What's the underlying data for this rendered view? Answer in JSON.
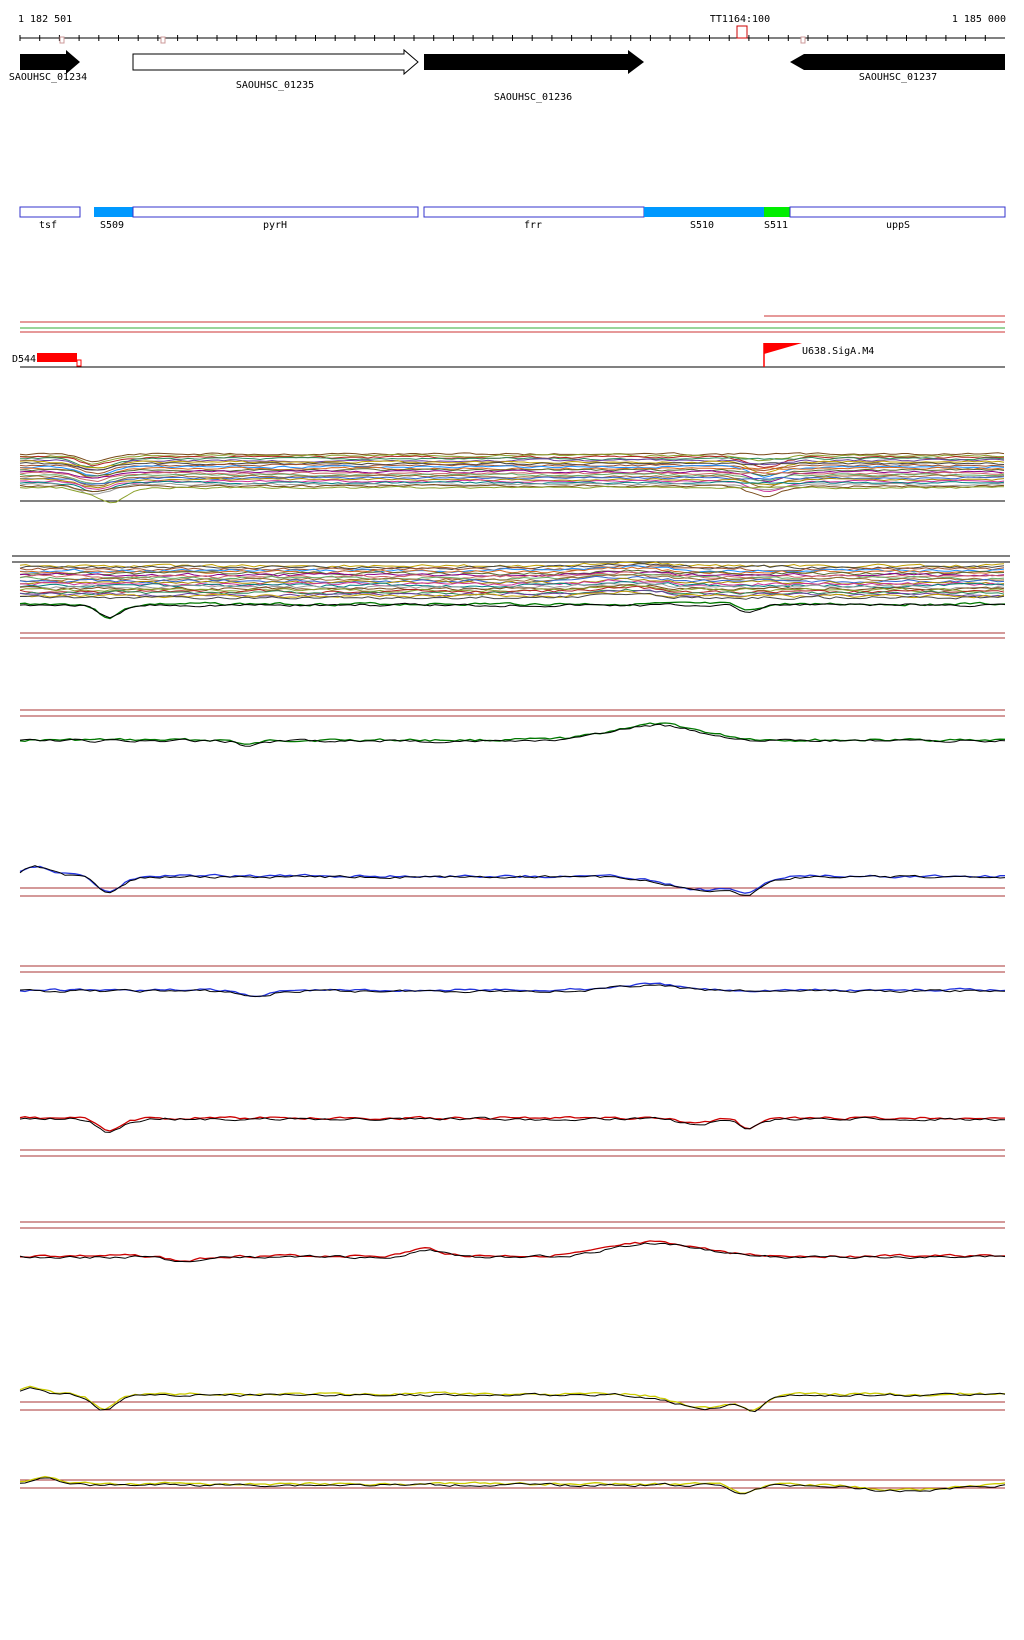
{
  "coordinates": {
    "start": "1 182 501",
    "end": "1 185 000"
  },
  "terminator": {
    "label": "TT1164:100"
  },
  "genes": [
    {
      "id": "SAOUHSC_01234",
      "strand": "+",
      "style": "filled"
    },
    {
      "id": "SAOUHSC_01235",
      "strand": "+",
      "style": "open"
    },
    {
      "id": "SAOUHSC_01236",
      "strand": "+",
      "style": "filled"
    },
    {
      "id": "SAOUHSC_01237",
      "strand": "-",
      "style": "filled"
    }
  ],
  "annotation_segments": [
    {
      "label": "tsf",
      "kind": "gene"
    },
    {
      "label": "S509",
      "kind": "segment"
    },
    {
      "label": "pyrH",
      "kind": "gene"
    },
    {
      "label": "frr",
      "kind": "gene"
    },
    {
      "label": "S510",
      "kind": "segment"
    },
    {
      "label": "S511",
      "kind": "segment"
    },
    {
      "label": "uppS",
      "kind": "gene"
    }
  ],
  "features": [
    {
      "label": "D544"
    },
    {
      "label": "U638.SigA.M4"
    }
  ],
  "colors": {
    "gene_fill": "#000000",
    "segment_blue": "#0099ff",
    "segment_green": "#00ee00",
    "segment_outline": "#3333cc",
    "feature_red": "#ff0000",
    "threshold_line": "#aa3333",
    "track_green": "#007700",
    "track_blue": "#2233dd",
    "track_red": "#cc0000",
    "track_yellow": "#cccc00"
  }
}
